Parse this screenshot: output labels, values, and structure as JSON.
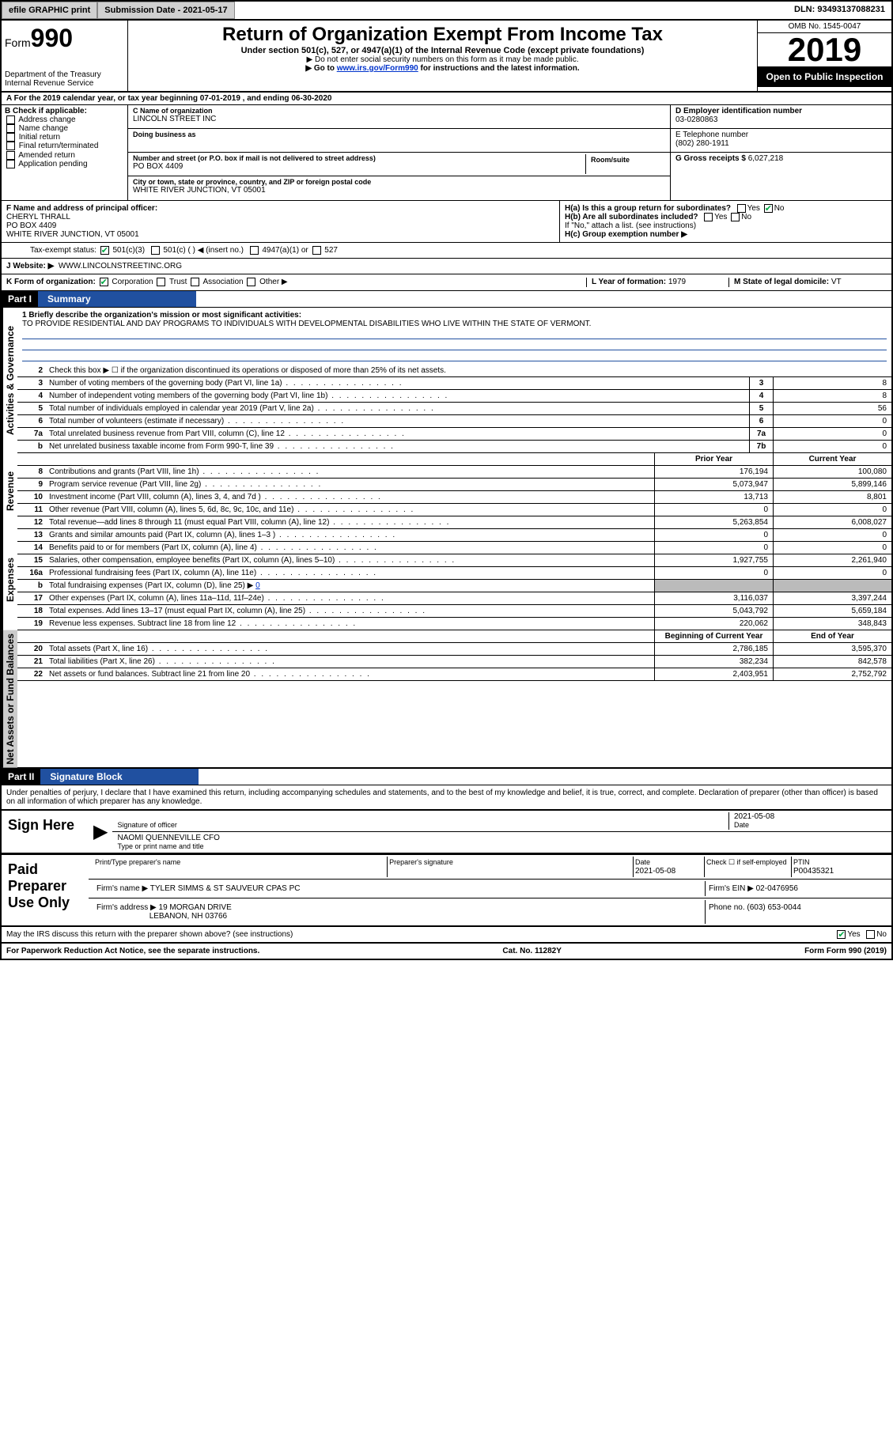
{
  "topbar": {
    "efile": "efile GRAPHIC print",
    "subdate_label": "Submission Date - ",
    "subdate": "2021-05-17",
    "dln_label": "DLN: ",
    "dln": "93493137088231"
  },
  "header": {
    "form_prefix": "Form",
    "form_num": "990",
    "dept": "Department of the Treasury\nInternal Revenue Service",
    "title": "Return of Organization Exempt From Income Tax",
    "sub": "Under section 501(c), 527, or 4947(a)(1) of the Internal Revenue Code (except private foundations)",
    "note1": "▶ Do not enter social security numbers on this form as it may be made public.",
    "note2_pre": "▶ Go to ",
    "note2_link": "www.irs.gov/Form990",
    "note2_post": " for instructions and the latest information.",
    "omb": "OMB No. 1545-0047",
    "year": "2019",
    "inspect": "Open to Public Inspection"
  },
  "line_a": "A For the 2019 calendar year, or tax year beginning 07-01-2019    , and ending 06-30-2020",
  "boxB": {
    "label": "B Check if applicable:",
    "items": [
      "Address change",
      "Name change",
      "Initial return",
      "Final return/terminated",
      "Amended return",
      "Application pending"
    ]
  },
  "boxC": {
    "name_lbl": "C Name of organization",
    "name": "LINCOLN STREET INC",
    "dba_lbl": "Doing business as",
    "addr_lbl": "Number and street (or P.O. box if mail is not delivered to street address)",
    "room_lbl": "Room/suite",
    "addr": "PO BOX 4409",
    "city_lbl": "City or town, state or province, country, and ZIP or foreign postal code",
    "city": "WHITE RIVER JUNCTION, VT  05001"
  },
  "boxD": {
    "lbl": "D Employer identification number",
    "val": "03-0280863"
  },
  "boxE": {
    "lbl": "E Telephone number",
    "val": "(802) 280-1911"
  },
  "boxG": {
    "lbl": "G Gross receipts $",
    "val": "6,027,218"
  },
  "boxF": {
    "lbl": "F Name and address of principal officer:",
    "l1": "CHERYL THRALL",
    "l2": "PO BOX 4409",
    "l3": "WHITE RIVER JUNCTION, VT  05001"
  },
  "boxH": {
    "a": "H(a)  Is this a group return for subordinates?",
    "a_yes": "Yes",
    "a_no": "No",
    "b": "H(b)  Are all subordinates included?",
    "b_yes": "Yes",
    "b_no": "No",
    "note": "If \"No,\" attach a list. (see instructions)",
    "c": "H(c)  Group exemption number ▶"
  },
  "taxexempt": {
    "lbl": "Tax-exempt status:",
    "o1": "501(c)(3)",
    "o2": "501(c) (  ) ◀ (insert no.)",
    "o3": "4947(a)(1) or",
    "o4": "527"
  },
  "boxJ": {
    "lbl": "J   Website: ▶",
    "val": "WWW.LINCOLNSTREETINC.ORG"
  },
  "boxK": {
    "lbl": "K Form of organization:",
    "o1": "Corporation",
    "o2": "Trust",
    "o3": "Association",
    "o4": "Other ▶"
  },
  "boxL": {
    "lbl": "L Year of formation:",
    "val": "1979"
  },
  "boxM": {
    "lbl": "M State of legal domicile:",
    "val": "VT"
  },
  "part1": {
    "tag": "Part I",
    "title": "Summary"
  },
  "mission": {
    "lbl": "1  Briefly describe the organization's mission or most significant activities:",
    "txt": "TO PROVIDE RESIDENTIAL AND DAY PROGRAMS TO INDIVIDUALS WITH DEVELOPMENTAL DISABILITIES WHO LIVE WITHIN THE STATE OF VERMONT."
  },
  "line2": "Check this box ▶ ☐ if the organization discontinued its operations or disposed of more than 25% of its net assets.",
  "sections": {
    "gov": "Activities & Governance",
    "rev": "Revenue",
    "exp": "Expenses",
    "na": "Net Assets or Fund Balances"
  },
  "gov_lines": [
    {
      "n": "3",
      "d": "Number of voting members of the governing body (Part VI, line 1a)",
      "box": "3",
      "v": "8"
    },
    {
      "n": "4",
      "d": "Number of independent voting members of the governing body (Part VI, line 1b)",
      "box": "4",
      "v": "8"
    },
    {
      "n": "5",
      "d": "Total number of individuals employed in calendar year 2019 (Part V, line 2a)",
      "box": "5",
      "v": "56"
    },
    {
      "n": "6",
      "d": "Total number of volunteers (estimate if necessary)",
      "box": "6",
      "v": "0"
    },
    {
      "n": "7a",
      "d": "Total unrelated business revenue from Part VIII, column (C), line 12",
      "box": "7a",
      "v": "0"
    },
    {
      "n": "b",
      "d": "Net unrelated business taxable income from Form 990-T, line 39",
      "box": "7b",
      "v": "0"
    }
  ],
  "colhdr": {
    "py": "Prior Year",
    "cy": "Current Year"
  },
  "rev_lines": [
    {
      "n": "8",
      "d": "Contributions and grants (Part VIII, line 1h)",
      "py": "176,194",
      "cy": "100,080"
    },
    {
      "n": "9",
      "d": "Program service revenue (Part VIII, line 2g)",
      "py": "5,073,947",
      "cy": "5,899,146"
    },
    {
      "n": "10",
      "d": "Investment income (Part VIII, column (A), lines 3, 4, and 7d )",
      "py": "13,713",
      "cy": "8,801"
    },
    {
      "n": "11",
      "d": "Other revenue (Part VIII, column (A), lines 5, 6d, 8c, 9c, 10c, and 11e)",
      "py": "0",
      "cy": "0"
    },
    {
      "n": "12",
      "d": "Total revenue—add lines 8 through 11 (must equal Part VIII, column (A), line 12)",
      "py": "5,263,854",
      "cy": "6,008,027"
    }
  ],
  "exp_lines": [
    {
      "n": "13",
      "d": "Grants and similar amounts paid (Part IX, column (A), lines 1–3 )",
      "py": "0",
      "cy": "0"
    },
    {
      "n": "14",
      "d": "Benefits paid to or for members (Part IX, column (A), line 4)",
      "py": "0",
      "cy": "0"
    },
    {
      "n": "15",
      "d": "Salaries, other compensation, employee benefits (Part IX, column (A), lines 5–10)",
      "py": "1,927,755",
      "cy": "2,261,940"
    },
    {
      "n": "16a",
      "d": "Professional fundraising fees (Part IX, column (A), line 11e)",
      "py": "0",
      "cy": "0"
    }
  ],
  "exp_b": {
    "n": "b",
    "d": "Total fundraising expenses (Part IX, column (D), line 25) ▶",
    "v": "0"
  },
  "exp_lines2": [
    {
      "n": "17",
      "d": "Other expenses (Part IX, column (A), lines 11a–11d, 11f–24e)",
      "py": "3,116,037",
      "cy": "3,397,244"
    },
    {
      "n": "18",
      "d": "Total expenses. Add lines 13–17 (must equal Part IX, column (A), line 25)",
      "py": "5,043,792",
      "cy": "5,659,184"
    },
    {
      "n": "19",
      "d": "Revenue less expenses. Subtract line 18 from line 12",
      "py": "220,062",
      "cy": "348,843"
    }
  ],
  "colhdr2": {
    "py": "Beginning of Current Year",
    "cy": "End of Year"
  },
  "na_lines": [
    {
      "n": "20",
      "d": "Total assets (Part X, line 16)",
      "py": "2,786,185",
      "cy": "3,595,370"
    },
    {
      "n": "21",
      "d": "Total liabilities (Part X, line 26)",
      "py": "382,234",
      "cy": "842,578"
    },
    {
      "n": "22",
      "d": "Net assets or fund balances. Subtract line 21 from line 20",
      "py": "2,403,951",
      "cy": "2,752,792"
    }
  ],
  "part2": {
    "tag": "Part II",
    "title": "Signature Block"
  },
  "penalties": "Under penalties of perjury, I declare that I have examined this return, including accompanying schedules and statements, and to the best of my knowledge and belief, it is true, correct, and complete. Declaration of preparer (other than officer) is based on all information of which preparer has any knowledge.",
  "sign": {
    "here": "Sign Here",
    "sig_lbl": "Signature of officer",
    "date_lbl": "Date",
    "date": "2021-05-08",
    "name": "NAOMI QUENNEVILLE CFO",
    "name_lbl": "Type or print name and title"
  },
  "paid": {
    "lbl": "Paid Preparer Use Only",
    "r1": {
      "c1": "Print/Type preparer's name",
      "c2": "Preparer's signature",
      "c3_lbl": "Date",
      "c3": "2021-05-08",
      "c4": "Check ☐ if self-employed",
      "c5_lbl": "PTIN",
      "c5": "P00435321"
    },
    "r2": {
      "lbl": "Firm's name   ▶",
      "val": "TYLER SIMMS & ST SAUVEUR CPAS PC",
      "ein_lbl": "Firm's EIN ▶",
      "ein": "02-0476956"
    },
    "r3": {
      "lbl": "Firm's address ▶",
      "l1": "19 MORGAN DRIVE",
      "l2": "LEBANON, NH  03766",
      "ph_lbl": "Phone no.",
      "ph": "(603) 653-0044"
    }
  },
  "discuss": {
    "q": "May the IRS discuss this return with the preparer shown above? (see instructions)",
    "yes": "Yes",
    "no": "No"
  },
  "footer": {
    "l": "For Paperwork Reduction Act Notice, see the separate instructions.",
    "m": "Cat. No. 11282Y",
    "r": "Form 990 (2019)"
  }
}
